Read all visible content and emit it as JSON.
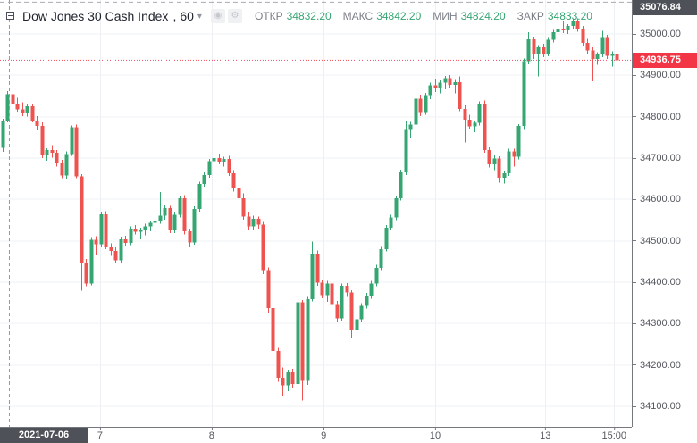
{
  "header": {
    "symbol_title": "Dow Jones 30 Cash Index",
    "separator": ",",
    "interval": "60",
    "caret": "▾",
    "eye_glyph": "◉",
    "gear_glyph": "⚙",
    "ohlc": [
      {
        "label": "ОТКР",
        "value": "34832.20"
      },
      {
        "label": "МАКС",
        "value": "34842.20"
      },
      {
        "label": "МИН",
        "value": "34824.20"
      },
      {
        "label": "ЗАКР",
        "value": "34833.20"
      }
    ]
  },
  "price_axis": {
    "ticks": [
      "35000.00",
      "34900.00",
      "34800.00",
      "34700.00",
      "34600.00",
      "34500.00",
      "34400.00",
      "34300.00",
      "34200.00",
      "34100.00"
    ],
    "reference_badge": "35076.84",
    "last_badge": "34936.75"
  },
  "time_axis": {
    "marker_badge": "2021-07-06 05:00:00",
    "ticks": [
      {
        "label": "7",
        "index": 19.9
      },
      {
        "label": "8",
        "index": 42.6
      },
      {
        "label": "9",
        "index": 65.4
      },
      {
        "label": "10",
        "index": 88.1
      },
      {
        "label": "13",
        "index": 110.5
      },
      {
        "label": "15:00",
        "index": 124.5
      }
    ]
  },
  "colors": {
    "up": "#35a572",
    "down": "#ef5350",
    "grid": "#edf1f5",
    "axis_border": "#75797f",
    "badge_dark": "#4e5157",
    "badge_red": "#f23645",
    "last_line": "#f23645",
    "marker_line": "#9598a1",
    "reference_line": "#a8abb3"
  },
  "chart_data": {
    "type": "candlestick",
    "title": "Dow Jones 30 Cash Index",
    "interval_minutes": 60,
    "legend_ohlc": {
      "open": 34832.2,
      "high": 34842.2,
      "low": 34824.2,
      "close": 34833.2
    },
    "last_price": 34936.75,
    "reference_level": 35076.84,
    "marker": {
      "label": "2021-07-06 05:00:00",
      "index": 1.45
    },
    "price_ticks": [
      35000,
      34900,
      34800,
      34700,
      34600,
      34500,
      34400,
      34300,
      34200,
      34100
    ],
    "visible_price_range": [
      34050,
      35082
    ],
    "grid": true,
    "candles": [
      [
        34725,
        34795,
        34715,
        34790
      ],
      [
        34790,
        34862,
        34786,
        34854
      ],
      [
        34854,
        34864,
        34826,
        34831
      ],
      [
        34831,
        34846,
        34812,
        34818
      ],
      [
        34818,
        34835,
        34802,
        34808
      ],
      [
        34808,
        34830,
        34800,
        34825
      ],
      [
        34825,
        34832,
        34786,
        34791
      ],
      [
        34791,
        34801,
        34769,
        34778
      ],
      [
        34778,
        34786,
        34700,
        34707
      ],
      [
        34707,
        34724,
        34694,
        34719
      ],
      [
        34719,
        34731,
        34701,
        34713
      ],
      [
        34713,
        34719,
        34679,
        34688
      ],
      [
        34688,
        34696,
        34651,
        34658
      ],
      [
        34658,
        34716,
        34650,
        34710
      ],
      [
        34710,
        34779,
        34705,
        34774
      ],
      [
        34774,
        34781,
        34651,
        34656
      ],
      [
        34656,
        34661,
        34380,
        34448
      ],
      [
        34448,
        34456,
        34390,
        34397
      ],
      [
        34397,
        34509,
        34392,
        34503
      ],
      [
        34503,
        34511,
        34466,
        34492
      ],
      [
        34492,
        34570,
        34486,
        34564
      ],
      [
        34564,
        34572,
        34480,
        34486
      ],
      [
        34486,
        34494,
        34464,
        34476
      ],
      [
        34476,
        34484,
        34446,
        34453
      ],
      [
        34453,
        34510,
        34448,
        34504
      ],
      [
        34504,
        34512,
        34488,
        34495
      ],
      [
        34495,
        34535,
        34490,
        34530
      ],
      [
        34530,
        34538,
        34516,
        34522
      ],
      [
        34522,
        34532,
        34504,
        34527
      ],
      [
        34527,
        34541,
        34513,
        34535
      ],
      [
        34535,
        34549,
        34523,
        34544
      ],
      [
        34544,
        34552,
        34526,
        34548
      ],
      [
        34548,
        34618,
        34541,
        34561
      ],
      [
        34561,
        34586,
        34551,
        34579
      ],
      [
        34579,
        34585,
        34519,
        34526
      ],
      [
        34526,
        34571,
        34519,
        34563
      ],
      [
        34563,
        34609,
        34557,
        34603
      ],
      [
        34603,
        34611,
        34516,
        34523
      ],
      [
        34523,
        34529,
        34484,
        34496
      ],
      [
        34496,
        34583,
        34491,
        34577
      ],
      [
        34577,
        34643,
        34571,
        34637
      ],
      [
        34637,
        34665,
        34631,
        34659
      ],
      [
        34659,
        34698,
        34653,
        34692
      ],
      [
        34692,
        34707,
        34675,
        34700
      ],
      [
        34700,
        34711,
        34685,
        34691
      ],
      [
        34691,
        34703,
        34679,
        34698
      ],
      [
        34698,
        34705,
        34657,
        34663
      ],
      [
        34663,
        34671,
        34619,
        34627
      ],
      [
        34627,
        34633,
        34591,
        34603
      ],
      [
        34603,
        34615,
        34551,
        34559
      ],
      [
        34559,
        34571,
        34527,
        34535
      ],
      [
        34535,
        34561,
        34527,
        34553
      ],
      [
        34553,
        34559,
        34529,
        34539
      ],
      [
        34539,
        34546,
        34419,
        34429
      ],
      [
        34429,
        34436,
        34327,
        34337
      ],
      [
        34337,
        34344,
        34225,
        34234
      ],
      [
        34234,
        34241,
        34159,
        34169
      ],
      [
        34169,
        34194,
        34126,
        34151
      ],
      [
        34151,
        34189,
        34137,
        34184
      ],
      [
        34184,
        34191,
        34145,
        34154
      ],
      [
        34154,
        34359,
        34147,
        34351
      ],
      [
        34351,
        34357,
        34114,
        34161
      ],
      [
        34161,
        34367,
        34152,
        34359
      ],
      [
        34359,
        34498,
        34354,
        34469
      ],
      [
        34469,
        34477,
        34391,
        34399
      ],
      [
        34399,
        34407,
        34361,
        34369
      ],
      [
        34369,
        34403,
        34353,
        34397
      ],
      [
        34397,
        34404,
        34339,
        34347
      ],
      [
        34347,
        34355,
        34305,
        34313
      ],
      [
        34313,
        34397,
        34307,
        34391
      ],
      [
        34391,
        34398,
        34367,
        34375
      ],
      [
        34375,
        34381,
        34266,
        34285
      ],
      [
        34285,
        34316,
        34278,
        34310
      ],
      [
        34310,
        34349,
        34303,
        34343
      ],
      [
        34343,
        34374,
        34336,
        34368
      ],
      [
        34368,
        34403,
        34360,
        34397
      ],
      [
        34397,
        34442,
        34390,
        34435
      ],
      [
        34435,
        34487,
        34429,
        34480
      ],
      [
        34480,
        34538,
        34474,
        34532
      ],
      [
        34532,
        34563,
        34525,
        34557
      ],
      [
        34557,
        34609,
        34550,
        34603
      ],
      [
        34603,
        34672,
        34597,
        34666
      ],
      [
        34666,
        34789,
        34659,
        34770
      ],
      [
        34770,
        34787,
        34749,
        34781
      ],
      [
        34781,
        34850,
        34775,
        34844
      ],
      [
        34844,
        34853,
        34802,
        34811
      ],
      [
        34811,
        34858,
        34805,
        34852
      ],
      [
        34852,
        34882,
        34843,
        34876
      ],
      [
        34876,
        34890,
        34860,
        34870
      ],
      [
        34870,
        34888,
        34856,
        34882
      ],
      [
        34882,
        34899,
        34866,
        34893
      ],
      [
        34893,
        34901,
        34869,
        34877
      ],
      [
        34877,
        34889,
        34856,
        34884
      ],
      [
        34884,
        34897,
        34813,
        34819
      ],
      [
        34819,
        34827,
        34738,
        34793
      ],
      [
        34793,
        34805,
        34771,
        34777
      ],
      [
        34777,
        34791,
        34763,
        34785
      ],
      [
        34785,
        34837,
        34779,
        34831
      ],
      [
        34831,
        34839,
        34713,
        34719
      ],
      [
        34719,
        34726,
        34677,
        34685
      ],
      [
        34685,
        34706,
        34671,
        34699
      ],
      [
        34699,
        34704,
        34641,
        34653
      ],
      [
        34653,
        34669,
        34638,
        34663
      ],
      [
        34663,
        34723,
        34657,
        34716
      ],
      [
        34716,
        34723,
        34679,
        34703
      ],
      [
        34703,
        34782,
        34697,
        34778
      ],
      [
        34778,
        34941,
        34770,
        34934
      ],
      [
        34934,
        35004,
        34927,
        34987
      ],
      [
        34987,
        34994,
        34940,
        34950
      ],
      [
        34950,
        34973,
        34898,
        34968
      ],
      [
        34968,
        34976,
        34944,
        34952
      ],
      [
        34952,
        34992,
        34946,
        34986
      ],
      [
        34986,
        35010,
        34980,
        35004
      ],
      [
        35004,
        35018,
        34996,
        35012
      ],
      [
        35012,
        35030,
        35002,
        35009
      ],
      [
        35009,
        35024,
        35000,
        35020
      ],
      [
        35020,
        35036,
        35012,
        35031
      ],
      [
        35031,
        35038,
        35006,
        35013
      ],
      [
        35013,
        35019,
        34970,
        34978
      ],
      [
        34978,
        34988,
        34953,
        34960
      ],
      [
        34960,
        34968,
        34886,
        34940
      ],
      [
        34940,
        34956,
        34926,
        34950
      ],
      [
        34950,
        35008,
        34944,
        34992
      ],
      [
        34992,
        34998,
        34940,
        34947
      ],
      [
        34947,
        34958,
        34921,
        34952
      ],
      [
        34952,
        34955,
        34906,
        34936.75
      ]
    ]
  }
}
